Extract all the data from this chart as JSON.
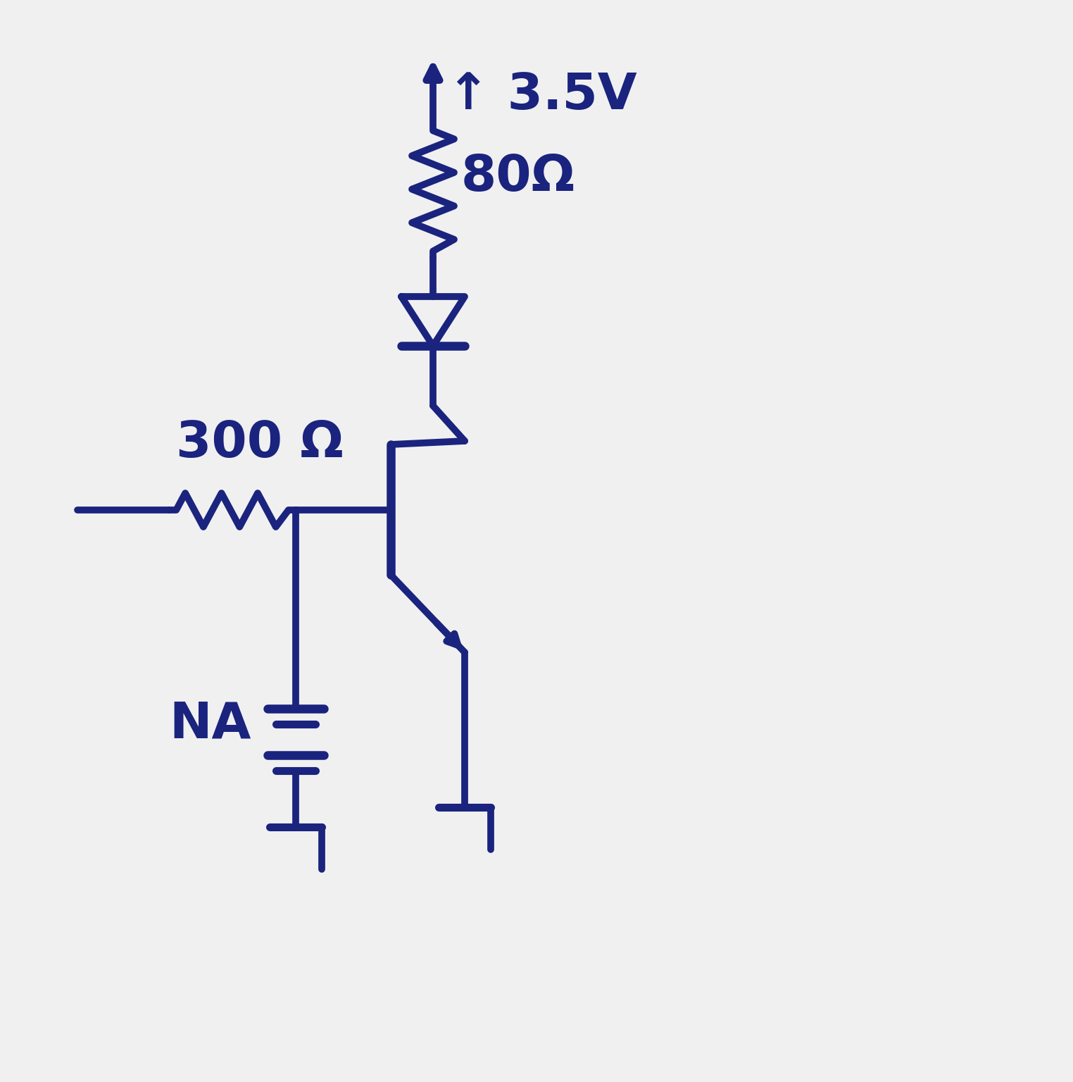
{
  "bg_color": "#f0f0f0",
  "line_color": "#1a237e",
  "line_width": 7,
  "labels": {
    "voltage": "↑ 3.5V",
    "r_collector": "80Ω",
    "r_base": "300 Ω",
    "ground_label": "NA"
  },
  "font_size_large": 52,
  "font_size_medium": 42
}
